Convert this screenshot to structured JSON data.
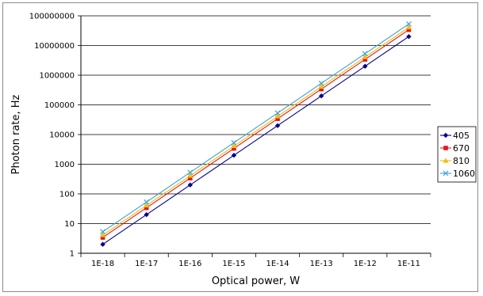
{
  "chart_data": {
    "type": "line",
    "x": [
      "1E-18",
      "1E-17",
      "1E-16",
      "1E-15",
      "1E-14",
      "1E-13",
      "1E-12",
      "1E-11"
    ],
    "xlabel": "Optical power, W",
    "ylabel": "Photon rate, Hz",
    "yscale": "log",
    "ylim": [
      1,
      100000000
    ],
    "yticks": [
      "1",
      "10",
      "100",
      "1000",
      "10000",
      "100000",
      "1000000",
      "10000000",
      "100000000"
    ],
    "grid": "horizontal",
    "legend_position": "right",
    "series": [
      {
        "name": "405",
        "color": "#00008b",
        "marker": "diamond",
        "values": [
          2,
          20,
          200,
          2000,
          20000,
          200000,
          2000000,
          20000000
        ]
      },
      {
        "name": "670",
        "color": "#e8141c",
        "marker": "square",
        "values": [
          3.4,
          34,
          340,
          3400,
          34000,
          340000,
          3400000,
          34000000
        ]
      },
      {
        "name": "810",
        "color": "#f0c000",
        "marker": "triangle",
        "values": [
          4.1,
          41,
          410,
          4100,
          41000,
          410000,
          4100000,
          41000000
        ]
      },
      {
        "name": "1060",
        "color": "#3aa0d8",
        "marker": "x",
        "values": [
          5.3,
          53,
          530,
          5300,
          53000,
          530000,
          5300000,
          53000000
        ]
      }
    ]
  }
}
